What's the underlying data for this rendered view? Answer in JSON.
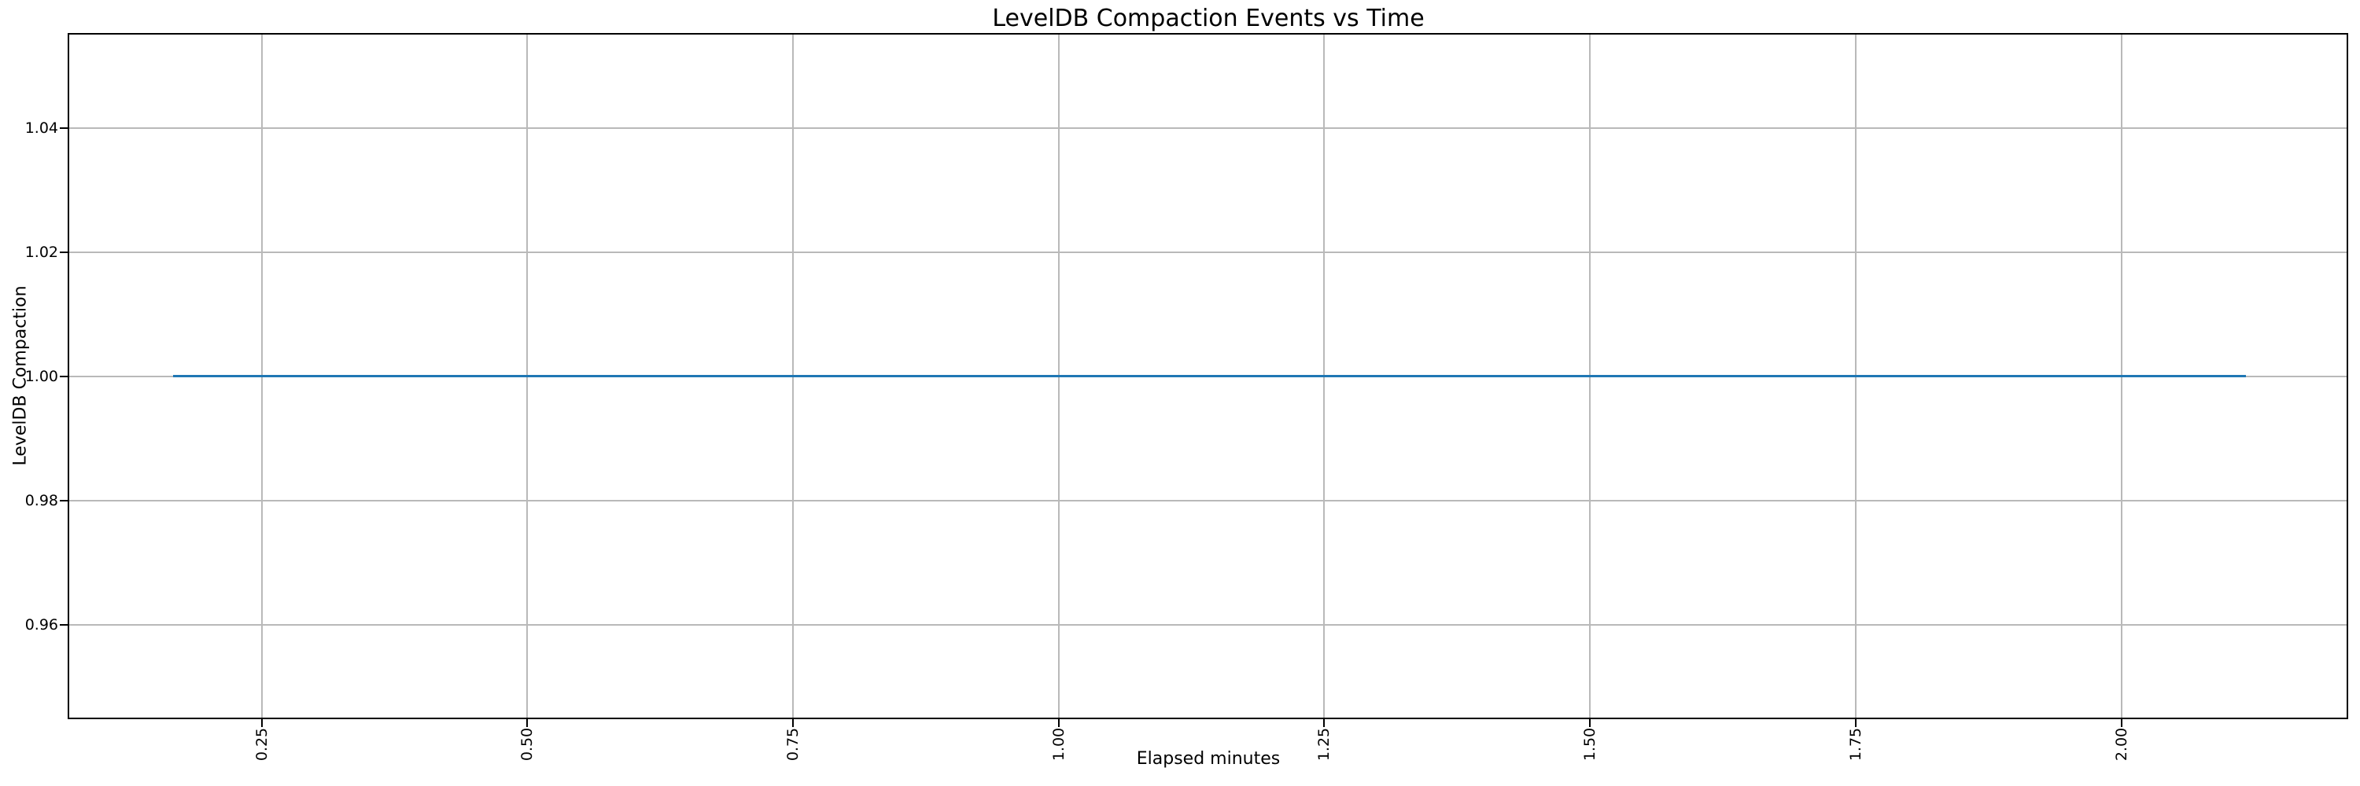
{
  "figure": {
    "background": "#ffffff"
  },
  "chart_data": {
    "type": "line",
    "title": "LevelDB Compaction Events vs Time",
    "xlabel": "Elapsed minutes",
    "ylabel": "LevelDB Compaction",
    "xlim": [
      0.069,
      2.212
    ],
    "ylim": [
      0.945,
      1.055
    ],
    "xticks": [
      0.25,
      0.5,
      0.75,
      1.0,
      1.25,
      1.5,
      1.75,
      2.0
    ],
    "xtick_labels": [
      "0.25",
      "0.50",
      "0.75",
      "1.00",
      "1.25",
      "1.50",
      "1.75",
      "2.00"
    ],
    "yticks": [
      0.96,
      0.98,
      1.0,
      1.02,
      1.04
    ],
    "ytick_labels": [
      "0.96",
      "0.98",
      "1.00",
      "1.02",
      "1.04"
    ],
    "grid": true,
    "legend": false,
    "series": [
      {
        "color": "#1f77b4",
        "x": [
          0.167,
          2.117
        ],
        "y": [
          1.0,
          1.0
        ]
      }
    ]
  }
}
